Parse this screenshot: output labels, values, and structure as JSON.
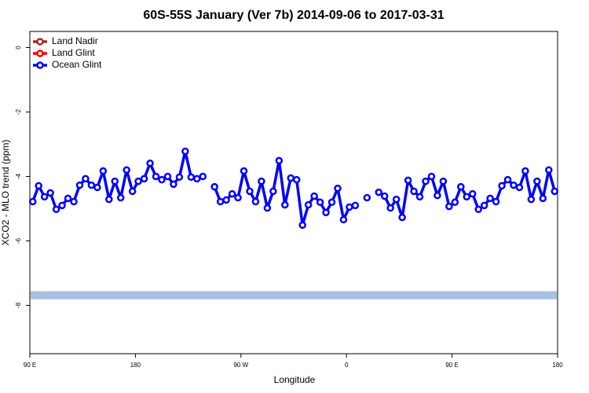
{
  "chart_data": {
    "type": "line",
    "title": "60S-55S January (Ver 7b)   2014-09-06 to 2017-03-31",
    "xlabel": "Longitude",
    "ylabel": "XCO2 - MLO trend (ppm)",
    "xlim": [
      90,
      540
    ],
    "xticks": [
      {
        "value": 90,
        "label": "90 E"
      },
      {
        "value": 180,
        "label": "180"
      },
      {
        "value": 270,
        "label": "90 W"
      },
      {
        "value": 360,
        "label": "0"
      },
      {
        "value": 450,
        "label": "90 E"
      },
      {
        "value": 540,
        "label": "180"
      }
    ],
    "ylim": [
      -9.5,
      0.5
    ],
    "yticks": [
      0,
      -2,
      -4,
      -6,
      -8
    ],
    "legend": "top-left",
    "band": {
      "range": [
        -7.81,
        -7.56
      ],
      "color": "#a7bfe0"
    },
    "x": [
      92.5,
      97.5,
      102.5,
      107.5,
      112.5,
      117.5,
      122.5,
      127.5,
      132.5,
      137.5,
      142.5,
      147.5,
      152.5,
      157.5,
      162.5,
      167.5,
      172.5,
      177.5,
      182.5,
      187.5,
      192.5,
      197.5,
      202.5,
      207.5,
      212.5,
      217.5,
      222.5,
      227.5,
      232.5,
      237.5,
      242.5,
      247.5,
      252.5,
      257.5,
      262.5,
      267.5,
      272.5,
      277.5,
      282.5,
      287.5,
      292.5,
      297.5,
      302.5,
      307.5,
      312.5,
      317.5,
      322.5,
      327.5,
      332.5,
      337.5,
      342.5,
      347.5,
      352.5,
      357.5,
      362.5,
      367.5,
      372.5,
      377.5,
      382.5,
      387.5,
      392.5,
      397.5,
      402.5,
      407.5,
      412.5,
      417.5,
      422.5,
      427.5,
      432.5,
      437.5,
      442.5,
      447.5,
      452.5,
      457.5,
      462.5,
      467.5,
      472.5,
      477.5,
      482.5,
      487.5,
      492.5,
      497.5,
      502.5,
      507.5,
      512.5,
      517.5,
      522.5,
      527.5,
      532.5,
      537.5
    ],
    "series": [
      {
        "name": "Land Nadir",
        "color": "#a52a2a",
        "values": [
          null,
          null,
          null,
          null,
          null,
          null,
          null,
          null,
          null,
          null,
          null,
          null,
          null,
          null,
          null,
          null,
          null,
          null,
          null,
          null,
          null,
          null,
          null,
          null,
          null,
          null,
          null,
          null,
          null,
          null,
          null,
          null,
          null,
          null,
          null,
          null,
          null,
          null,
          null,
          null,
          null,
          null,
          null,
          null,
          null,
          null,
          null,
          null,
          null,
          null,
          null,
          null,
          null,
          null,
          null,
          null,
          null,
          null,
          null,
          null,
          null,
          null,
          null,
          null,
          null,
          null,
          null,
          null,
          null,
          null,
          null,
          null,
          null,
          null,
          null,
          null,
          null,
          null,
          null,
          null,
          null,
          null,
          null,
          null,
          null,
          null,
          null,
          null,
          null,
          null
        ]
      },
      {
        "name": "Land Glint",
        "color": "#ff0000",
        "values": [
          null,
          null,
          null,
          null,
          null,
          null,
          null,
          null,
          null,
          null,
          null,
          null,
          null,
          null,
          null,
          null,
          null,
          null,
          null,
          null,
          null,
          null,
          null,
          null,
          null,
          null,
          null,
          null,
          null,
          null,
          null,
          null,
          null,
          null,
          null,
          null,
          null,
          null,
          null,
          null,
          null,
          null,
          null,
          null,
          null,
          null,
          null,
          null,
          null,
          null,
          null,
          null,
          null,
          null,
          null,
          null,
          null,
          null,
          null,
          null,
          null,
          null,
          null,
          null,
          null,
          null,
          null,
          null,
          null,
          null,
          null,
          null,
          null,
          null,
          null,
          null,
          null,
          null,
          null,
          null,
          null,
          null,
          null,
          null,
          null,
          null,
          null,
          null,
          null,
          null
        ]
      },
      {
        "name": "Ocean Glint",
        "color": "#0000ff",
        "values": [
          -4.78,
          -4.29,
          -4.63,
          -4.51,
          -5.02,
          -4.9,
          -4.68,
          -4.78,
          -4.27,
          -4.07,
          -4.27,
          -4.34,
          -3.83,
          -4.71,
          -4.15,
          -4.66,
          -3.8,
          -4.46,
          -4.15,
          -4.07,
          -3.59,
          -4.0,
          -4.1,
          -4.0,
          -4.24,
          -4.02,
          -3.22,
          -4.02,
          -4.07,
          -4.0,
          null,
          -4.32,
          -4.78,
          -4.73,
          -4.54,
          -4.66,
          -3.83,
          -4.46,
          -4.78,
          -4.15,
          -4.98,
          -4.46,
          -3.51,
          -4.88,
          -4.05,
          -4.1,
          -5.51,
          -4.88,
          -4.61,
          -4.8,
          -5.12,
          -4.8,
          -4.37,
          -5.34,
          -4.95,
          -4.9,
          null,
          -4.66,
          null,
          -4.49,
          -4.61,
          -4.98,
          -4.71,
          -5.27,
          -4.12,
          -4.46,
          -4.63,
          -4.15,
          -4.0,
          -4.59,
          -4.15,
          -4.93,
          -4.8,
          -4.32,
          -4.63,
          -4.54,
          -5.02,
          -4.9,
          -4.68,
          -4.78,
          -4.29,
          -4.1,
          -4.27,
          -4.34,
          -3.83,
          -4.71,
          -4.15,
          -4.68,
          -3.8,
          -4.46
        ]
      }
    ]
  }
}
